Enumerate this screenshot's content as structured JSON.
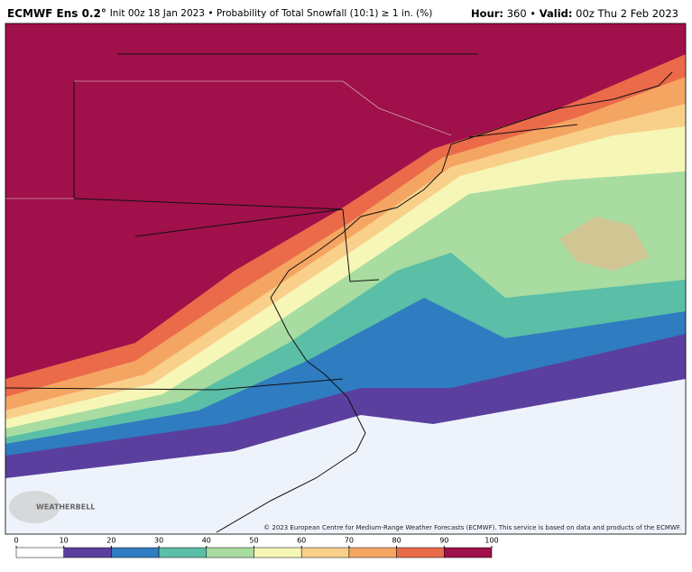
{
  "header": {
    "model": "ECMWF Ens 0.2°",
    "description": "Init 00z 18 Jan 2023 • Probability of Total Snowfall (10:1) ≥ 1 in. (%)",
    "hour_label": "Hour:",
    "hour": "360",
    "separator": "•",
    "valid_label": "Valid:",
    "valid": "00z Thu 2 Feb 2023"
  },
  "copyright": "© 2023 European Centre for Medium-Range Weather Forecasts (ECMWF). This service is based on data and products of the ECMWF.",
  "logo": "WEATHERBELL",
  "colorbar": {
    "ticks": [
      0,
      10,
      20,
      30,
      40,
      50,
      60,
      70,
      80,
      90,
      100
    ],
    "colors": [
      "#ffffff",
      "#5b3f9e",
      "#2f7cc0",
      "#5abfa6",
      "#a8dca0",
      "#f6f6b6",
      "#f8d08a",
      "#f5a562",
      "#ea6a4a",
      "#a0104a"
    ]
  }
}
